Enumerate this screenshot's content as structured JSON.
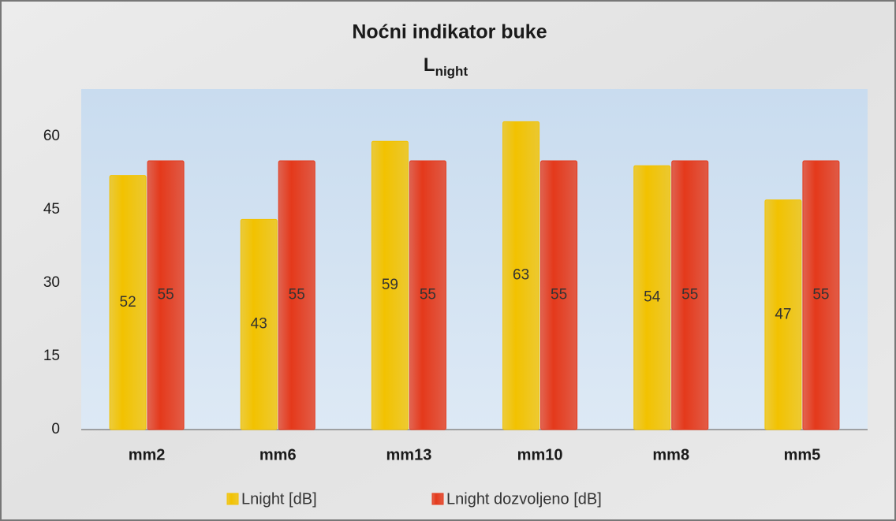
{
  "chart_data": {
    "type": "bar",
    "title": "Noćni indikator buke",
    "subtitle": {
      "main": "L",
      "sub": "night"
    },
    "categories": [
      "mm2",
      "mm6",
      "mm13",
      "mm10",
      "mm8",
      "mm5"
    ],
    "series": [
      {
        "name": "Lnight [dB]",
        "color": "#f2c200",
        "values": [
          52,
          43,
          59,
          63,
          54,
          47
        ]
      },
      {
        "name": "Lnight dozvoljeno [dB]",
        "color": "#e4391b",
        "values": [
          55,
          55,
          55,
          55,
          55,
          55
        ]
      }
    ],
    "ylim": [
      0,
      70
    ],
    "yticks": [
      0,
      15,
      30,
      45,
      60
    ],
    "grid": false,
    "legend": "bottom"
  }
}
